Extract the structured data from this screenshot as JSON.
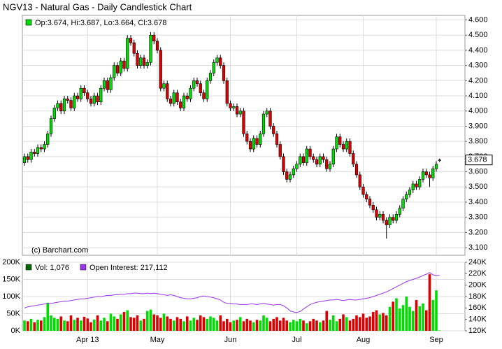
{
  "chart_data": [
    {
      "type": "candlestick",
      "title": "NGV13 - Natural Gas - Daily Candlestick Chart",
      "legend": "Op:3.674, Hi:3.687, Lo:3.664, Cl:3.678",
      "credit": "(c) Barchart.com",
      "last_label": "3.678",
      "up_color": "#00dd00",
      "down_color": "#dd0000",
      "grid": true,
      "ylim": [
        3.05,
        4.63
      ],
      "yticks": [
        {
          "value": 3.1,
          "label": "3.100"
        },
        {
          "value": 3.2,
          "label": "3.200"
        },
        {
          "value": 3.3,
          "label": "3.300"
        },
        {
          "value": 3.4,
          "label": "3.400"
        },
        {
          "value": 3.5,
          "label": "3.500"
        },
        {
          "value": 3.6,
          "label": "3.600"
        },
        {
          "value": 3.7,
          "label": "3.700"
        },
        {
          "value": 3.8,
          "label": "3.800"
        },
        {
          "value": 3.9,
          "label": "3.900"
        },
        {
          "value": 4.0,
          "label": "4.000"
        },
        {
          "value": 4.1,
          "label": "4.100"
        },
        {
          "value": 4.2,
          "label": "4.200"
        },
        {
          "value": 4.3,
          "label": "4.300"
        },
        {
          "value": 4.4,
          "label": "4.400"
        },
        {
          "value": 4.5,
          "label": "4.500"
        },
        {
          "value": 4.6,
          "label": "4.600"
        }
      ],
      "open": [
        3.66,
        3.7,
        3.68,
        3.73,
        3.72,
        3.76,
        3.75,
        3.78,
        3.85,
        3.95,
        4.02,
        4.05,
        4.0,
        4.08,
        4.07,
        4.02,
        4.1,
        4.08,
        4.15,
        4.12,
        4.08,
        4.05,
        4.1,
        4.06,
        4.15,
        4.2,
        4.14,
        4.22,
        4.3,
        4.25,
        4.33,
        4.28,
        4.48,
        4.45,
        4.38,
        4.3,
        4.35,
        4.3,
        4.32,
        4.5,
        4.46,
        4.4,
        4.15,
        4.18,
        4.08,
        4.05,
        4.12,
        4.06,
        4.02,
        4.1,
        4.08,
        4.15,
        4.2,
        4.18,
        4.12,
        4.08,
        4.2,
        4.25,
        4.32,
        4.35,
        4.3,
        4.2,
        4.05,
        4.02,
        4.03,
        3.98,
        4.0,
        3.85,
        3.8,
        3.75,
        3.82,
        3.78,
        3.85,
        3.98,
        4.0,
        3.9,
        3.85,
        3.78,
        3.7,
        3.6,
        3.55,
        3.58,
        3.62,
        3.65,
        3.7,
        3.66,
        3.75,
        3.7,
        3.68,
        3.65,
        3.7,
        3.68,
        3.62,
        3.65,
        3.75,
        3.83,
        3.78,
        3.75,
        3.8,
        3.72,
        3.65,
        3.58,
        3.5,
        3.45,
        3.42,
        3.38,
        3.35,
        3.3,
        3.32,
        3.28,
        3.25,
        3.3,
        3.28,
        3.32,
        3.36,
        3.42,
        3.45,
        3.48,
        3.52,
        3.5,
        3.55,
        3.6,
        3.58,
        3.56,
        3.62,
        3.674
      ],
      "high": [
        3.72,
        3.72,
        3.75,
        3.75,
        3.78,
        3.78,
        3.8,
        3.87,
        3.97,
        4.04,
        4.07,
        4.07,
        4.1,
        4.1,
        4.09,
        4.12,
        4.12,
        4.17,
        4.17,
        4.14,
        4.1,
        4.12,
        4.12,
        4.17,
        4.22,
        4.22,
        4.24,
        4.32,
        4.32,
        4.35,
        4.35,
        4.5,
        4.5,
        4.47,
        4.4,
        4.37,
        4.37,
        4.34,
        4.52,
        4.52,
        4.48,
        4.42,
        4.2,
        4.2,
        4.1,
        4.14,
        4.14,
        4.08,
        4.12,
        4.12,
        4.17,
        4.22,
        4.22,
        4.2,
        4.14,
        4.22,
        4.27,
        4.34,
        4.37,
        4.37,
        4.32,
        4.22,
        4.07,
        4.05,
        4.05,
        4.02,
        4.02,
        3.87,
        3.82,
        3.84,
        3.84,
        3.87,
        4.0,
        4.02,
        4.02,
        3.92,
        3.87,
        3.8,
        3.72,
        3.62,
        3.6,
        3.64,
        3.67,
        3.72,
        3.72,
        3.77,
        3.77,
        3.72,
        3.7,
        3.72,
        3.72,
        3.7,
        3.67,
        3.77,
        3.85,
        3.85,
        3.8,
        3.82,
        3.82,
        3.74,
        3.67,
        3.6,
        3.52,
        3.47,
        3.44,
        3.4,
        3.37,
        3.34,
        3.34,
        3.3,
        3.32,
        3.32,
        3.34,
        3.38,
        3.44,
        3.47,
        3.5,
        3.54,
        3.54,
        3.57,
        3.62,
        3.62,
        3.6,
        3.64,
        3.67,
        3.687
      ],
      "low": [
        3.64,
        3.66,
        3.66,
        3.7,
        3.7,
        3.73,
        3.73,
        3.76,
        3.83,
        3.93,
        4.0,
        3.98,
        3.98,
        4.05,
        4.0,
        4.0,
        4.06,
        4.06,
        4.1,
        4.06,
        4.03,
        4.03,
        4.04,
        4.04,
        4.13,
        4.12,
        4.12,
        4.2,
        4.23,
        4.23,
        4.26,
        4.26,
        4.43,
        4.36,
        4.28,
        4.28,
        4.28,
        4.28,
        4.3,
        4.44,
        4.38,
        4.13,
        4.13,
        4.06,
        4.03,
        4.03,
        4.04,
        4.0,
        4.0,
        4.06,
        4.06,
        4.13,
        4.16,
        4.1,
        4.06,
        4.06,
        4.18,
        4.23,
        4.3,
        4.28,
        4.18,
        4.03,
        4.0,
        4.0,
        3.96,
        3.96,
        3.83,
        3.78,
        3.73,
        3.73,
        3.76,
        3.76,
        3.83,
        3.96,
        3.88,
        3.83,
        3.76,
        3.68,
        3.58,
        3.53,
        3.53,
        3.56,
        3.6,
        3.63,
        3.64,
        3.64,
        3.68,
        3.66,
        3.63,
        3.63,
        3.66,
        3.6,
        3.6,
        3.63,
        3.73,
        3.76,
        3.73,
        3.73,
        3.7,
        3.63,
        3.56,
        3.48,
        3.43,
        3.4,
        3.36,
        3.33,
        3.28,
        3.28,
        3.26,
        3.16,
        3.23,
        3.26,
        3.26,
        3.3,
        3.34,
        3.4,
        3.43,
        3.46,
        3.48,
        3.48,
        3.53,
        3.56,
        3.5,
        3.54,
        3.6,
        3.664
      ],
      "close": [
        3.7,
        3.68,
        3.73,
        3.72,
        3.76,
        3.75,
        3.78,
        3.85,
        3.95,
        4.02,
        4.05,
        4.0,
        4.08,
        4.07,
        4.02,
        4.1,
        4.08,
        4.15,
        4.12,
        4.08,
        4.05,
        4.1,
        4.06,
        4.15,
        4.2,
        4.14,
        4.22,
        4.3,
        4.25,
        4.33,
        4.28,
        4.48,
        4.45,
        4.38,
        4.3,
        4.35,
        4.3,
        4.32,
        4.5,
        4.46,
        4.4,
        4.15,
        4.18,
        4.08,
        4.05,
        4.12,
        4.06,
        4.02,
        4.1,
        4.08,
        4.15,
        4.2,
        4.18,
        4.12,
        4.08,
        4.2,
        4.25,
        4.32,
        4.35,
        4.3,
        4.2,
        4.05,
        4.02,
        4.03,
        3.98,
        4.0,
        3.85,
        3.8,
        3.75,
        3.82,
        3.78,
        3.85,
        3.98,
        4.0,
        3.9,
        3.85,
        3.78,
        3.7,
        3.6,
        3.55,
        3.58,
        3.62,
        3.65,
        3.7,
        3.66,
        3.75,
        3.7,
        3.68,
        3.65,
        3.7,
        3.68,
        3.62,
        3.65,
        3.75,
        3.83,
        3.78,
        3.75,
        3.8,
        3.72,
        3.65,
        3.58,
        3.5,
        3.45,
        3.42,
        3.38,
        3.35,
        3.3,
        3.32,
        3.28,
        3.25,
        3.3,
        3.28,
        3.32,
        3.36,
        3.42,
        3.45,
        3.48,
        3.52,
        3.5,
        3.55,
        3.6,
        3.58,
        3.56,
        3.62,
        3.65,
        3.678
      ]
    },
    {
      "type": "bar",
      "categories": [
        null,
        null,
        null,
        null,
        null,
        null,
        null,
        null,
        null,
        null,
        null,
        null,
        null,
        null,
        null,
        null,
        null,
        null,
        null,
        "Apr 13",
        null,
        null,
        null,
        null,
        null,
        null,
        null,
        null,
        null,
        null,
        null,
        null,
        null,
        null,
        null,
        null,
        null,
        null,
        null,
        null,
        "May",
        null,
        null,
        null,
        null,
        null,
        null,
        null,
        null,
        null,
        null,
        null,
        null,
        null,
        null,
        null,
        null,
        null,
        null,
        null,
        null,
        null,
        "Jun",
        null,
        null,
        null,
        null,
        null,
        null,
        null,
        null,
        null,
        null,
        null,
        null,
        null,
        null,
        null,
        null,
        null,
        null,
        null,
        "Jul",
        null,
        null,
        null,
        null,
        null,
        null,
        null,
        null,
        null,
        null,
        null,
        null,
        null,
        null,
        null,
        null,
        null,
        null,
        null,
        "Aug",
        null,
        null,
        null,
        null,
        null,
        null,
        null,
        null,
        null,
        null,
        null,
        null,
        null,
        null,
        null,
        null,
        null,
        null,
        null,
        null,
        null,
        "Sep",
        null
      ],
      "ylim": [
        0,
        200000
      ],
      "yticks": [
        {
          "value": 0,
          "label": "0K"
        },
        {
          "value": 50000,
          "label": "50K"
        },
        {
          "value": 100000,
          "label": "100K"
        },
        {
          "value": 150000,
          "label": "150K"
        },
        {
          "value": 200000,
          "label": "200K"
        }
      ],
      "y2lim": [
        120000,
        240000
      ],
      "y2ticks": [
        {
          "value": 120000,
          "label": "120K"
        },
        {
          "value": 140000,
          "label": "140K"
        },
        {
          "value": 160000,
          "label": "160K"
        },
        {
          "value": 180000,
          "label": "180K"
        },
        {
          "value": 200000,
          "label": "200K"
        },
        {
          "value": 220000,
          "label": "220K"
        },
        {
          "value": 240000,
          "label": "240K"
        }
      ],
      "series": [
        {
          "name": "Vol: 1,076",
          "color": "#006600",
          "values": [
            30000,
            28000,
            35000,
            25000,
            32000,
            30000,
            40000,
            82000,
            45000,
            38000,
            35000,
            42000,
            30000,
            28000,
            45000,
            32000,
            38000,
            30000,
            41000,
            36000,
            25000,
            33000,
            45000,
            30000,
            38000,
            28000,
            50000,
            42000,
            35000,
            48000,
            55000,
            60000,
            40000,
            38000,
            45000,
            30000,
            35000,
            58000,
            62000,
            48000,
            45000,
            38000,
            50000,
            42000,
            35000,
            30000,
            40000,
            35000,
            28000,
            42000,
            30000,
            38000,
            32000,
            45000,
            40000,
            35000,
            42000,
            38000,
            30000,
            45000,
            28000,
            35000,
            25000,
            30000,
            32000,
            40000,
            28000,
            35000,
            30000,
            25000,
            32000,
            30000,
            45000,
            38000,
            28000,
            35000,
            40000,
            30000,
            38000,
            30000,
            25000,
            32000,
            28000,
            35000,
            30000,
            22000,
            28000,
            35000,
            30000,
            25000,
            30000,
            58000,
            32000,
            45000,
            28000,
            35000,
            48000,
            40000,
            30000,
            35000,
            45000,
            40000,
            50000,
            38000,
            42000,
            55000,
            60000,
            48000,
            52000,
            45000,
            70000,
            85000,
            95000,
            65000,
            75000,
            100000,
            70000,
            58000,
            90000,
            72000,
            80000,
            60000,
            165000,
            90000,
            118000,
            1076
          ]
        },
        {
          "name": "Open Interest: 217,112",
          "color": "#9933ee",
          "axis": "y2",
          "values": [
            160000,
            162000,
            163000,
            164000,
            165000,
            166000,
            167000,
            168000,
            168000,
            169000,
            170000,
            171000,
            172000,
            172000,
            173000,
            174000,
            175000,
            176000,
            176000,
            177000,
            178000,
            179000,
            180000,
            180000,
            181000,
            182000,
            182000,
            183000,
            183000,
            184000,
            184000,
            185000,
            185000,
            186000,
            186000,
            185000,
            185000,
            186000,
            185000,
            186000,
            185000,
            184000,
            183000,
            182000,
            183000,
            182000,
            180000,
            178000,
            177000,
            176000,
            176000,
            177000,
            178000,
            180000,
            181000,
            180000,
            179000,
            178000,
            176000,
            174000,
            170000,
            168000,
            168000,
            167000,
            167000,
            166000,
            166000,
            166000,
            167000,
            167000,
            166000,
            167000,
            168000,
            167000,
            166000,
            165000,
            166000,
            166000,
            164000,
            160000,
            155000,
            153000,
            152000,
            154000,
            158000,
            162000,
            166000,
            168000,
            170000,
            171000,
            172000,
            173000,
            174000,
            174000,
            175000,
            174000,
            173000,
            174000,
            175000,
            174000,
            174000,
            175000,
            176000,
            177000,
            178000,
            180000,
            182000,
            184000,
            186000,
            188000,
            191000,
            194000,
            197000,
            200000,
            203000,
            206000,
            208000,
            210000,
            212000,
            214000,
            217000,
            219000,
            222000,
            218000,
            217000,
            217112
          ]
        }
      ]
    }
  ]
}
